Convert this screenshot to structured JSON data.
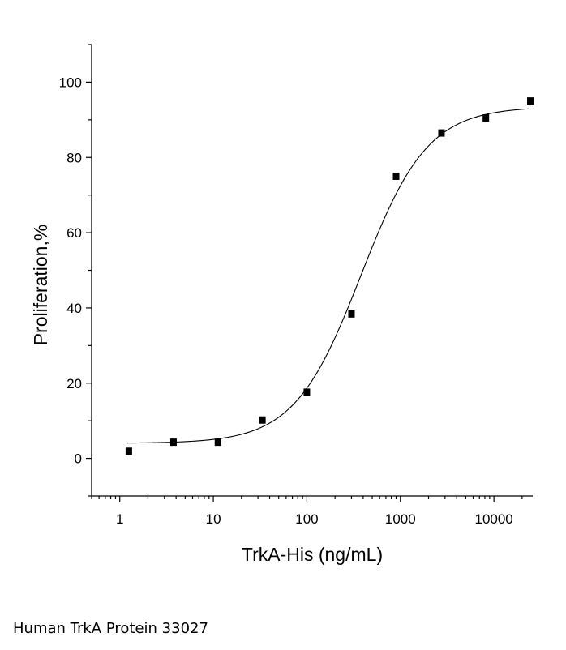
{
  "caption": "Human TrkA Protein 33027",
  "chart_data": {
    "type": "scatter",
    "xlabel": "TrkA-His (ng/mL)",
    "ylabel": "Proliferation,%",
    "xscale": "log",
    "xlim": [
      0.5,
      26000
    ],
    "ylim": [
      -10,
      110
    ],
    "x_tick_labels": [
      "1",
      "10",
      "100",
      "1000",
      "10000"
    ],
    "x_ticks": [
      1,
      10,
      100,
      1000,
      10000
    ],
    "y_ticks": [
      0,
      20,
      40,
      60,
      80,
      100
    ],
    "y_tick_labels": [
      "0",
      "20",
      "40",
      "60",
      "80",
      "100"
    ],
    "grid": false,
    "legend": "none",
    "series": [
      {
        "marker": "square",
        "color": "#000000",
        "x": [
          1.25,
          3.75,
          11.2,
          33.5,
          100,
          300,
          900,
          2750,
          8200,
          24500
        ],
        "y": [
          1.9,
          4.3,
          4.3,
          10.2,
          17.6,
          38.4,
          75.0,
          86.5,
          90.5,
          95.0
        ]
      }
    ],
    "fit": {
      "type": "four-parameter-logistic",
      "color": "#000000",
      "bottom": 4.0,
      "top": 93.5,
      "ec50": 380,
      "hill": 1.22,
      "x_range": [
        1.2,
        23500
      ]
    }
  }
}
